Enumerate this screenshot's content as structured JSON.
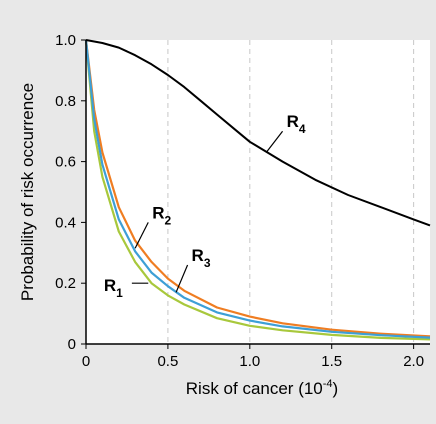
{
  "chart_data": {
    "type": "line",
    "title": "",
    "xlabel": "Risk of cancer (10",
    "xlabel_exp": "-4",
    "xlabel_close": ")",
    "ylabel": "Probability of risk occurrence",
    "xlim": [
      0,
      2.1
    ],
    "ylim": [
      0,
      1.0
    ],
    "xticks": [
      0,
      0.5,
      1.0,
      1.5,
      2.0
    ],
    "xtick_labels": [
      "0",
      "0.5",
      "1.0",
      "1.5",
      "2.0"
    ],
    "yticks": [
      0,
      0.2,
      0.4,
      0.6,
      0.8,
      1.0
    ],
    "ytick_labels": [
      "0",
      "0.2",
      "0.4",
      "0.6",
      "0.8",
      "1.0"
    ],
    "grid": "x-dashed",
    "background_color": "#e8e8e8",
    "plot_background": "#ffffff",
    "series": [
      {
        "name": "R",
        "subscript": "1",
        "color": "#a8c83c",
        "x": [
          0,
          0.05,
          0.1,
          0.2,
          0.3,
          0.4,
          0.5,
          0.6,
          0.8,
          1.0,
          1.2,
          1.5,
          1.8,
          2.1
        ],
        "y": [
          1.0,
          0.7,
          0.55,
          0.37,
          0.27,
          0.2,
          0.16,
          0.13,
          0.085,
          0.06,
          0.045,
          0.03,
          0.02,
          0.015
        ]
      },
      {
        "name": "R",
        "subscript": "2",
        "color": "#ef7d22",
        "x": [
          0,
          0.05,
          0.1,
          0.2,
          0.3,
          0.4,
          0.5,
          0.6,
          0.8,
          1.0,
          1.2,
          1.5,
          1.8,
          2.1
        ],
        "y": [
          1.0,
          0.77,
          0.63,
          0.45,
          0.34,
          0.27,
          0.215,
          0.175,
          0.12,
          0.09,
          0.068,
          0.047,
          0.034,
          0.025
        ]
      },
      {
        "name": "R",
        "subscript": "3",
        "color": "#3d9fd6",
        "x": [
          0,
          0.05,
          0.1,
          0.2,
          0.3,
          0.4,
          0.5,
          0.6,
          0.8,
          1.0,
          1.2,
          1.5,
          1.8,
          2.1
        ],
        "y": [
          1.0,
          0.74,
          0.59,
          0.41,
          0.305,
          0.235,
          0.19,
          0.152,
          0.104,
          0.077,
          0.058,
          0.04,
          0.029,
          0.021
        ]
      },
      {
        "name": "R",
        "subscript": "4",
        "color": "#000000",
        "x": [
          0,
          0.1,
          0.2,
          0.3,
          0.4,
          0.5,
          0.6,
          0.7,
          0.8,
          0.9,
          1.0,
          1.2,
          1.4,
          1.6,
          1.8,
          2.0,
          2.1
        ],
        "y": [
          1.0,
          0.99,
          0.975,
          0.95,
          0.92,
          0.885,
          0.845,
          0.8,
          0.755,
          0.71,
          0.665,
          0.6,
          0.54,
          0.49,
          0.45,
          0.41,
          0.39
        ]
      }
    ],
    "annotations": [
      {
        "series_index": 0,
        "text": "R",
        "sub": "1",
        "leader_x": [
          0.28,
          0.38
        ],
        "leader_y": [
          0.2,
          0.2
        ]
      },
      {
        "series_index": 1,
        "text": "R",
        "sub": "2",
        "leader_x": [
          0.3,
          0.38
        ],
        "leader_y": [
          0.315,
          0.4
        ]
      },
      {
        "series_index": 2,
        "text": "R",
        "sub": "3",
        "leader_x": [
          0.55,
          0.62
        ],
        "leader_y": [
          0.17,
          0.26
        ]
      },
      {
        "series_index": 3,
        "text": "R",
        "sub": "4",
        "leader_x": [
          1.1,
          1.2
        ],
        "leader_y": [
          0.63,
          0.7
        ]
      }
    ]
  }
}
